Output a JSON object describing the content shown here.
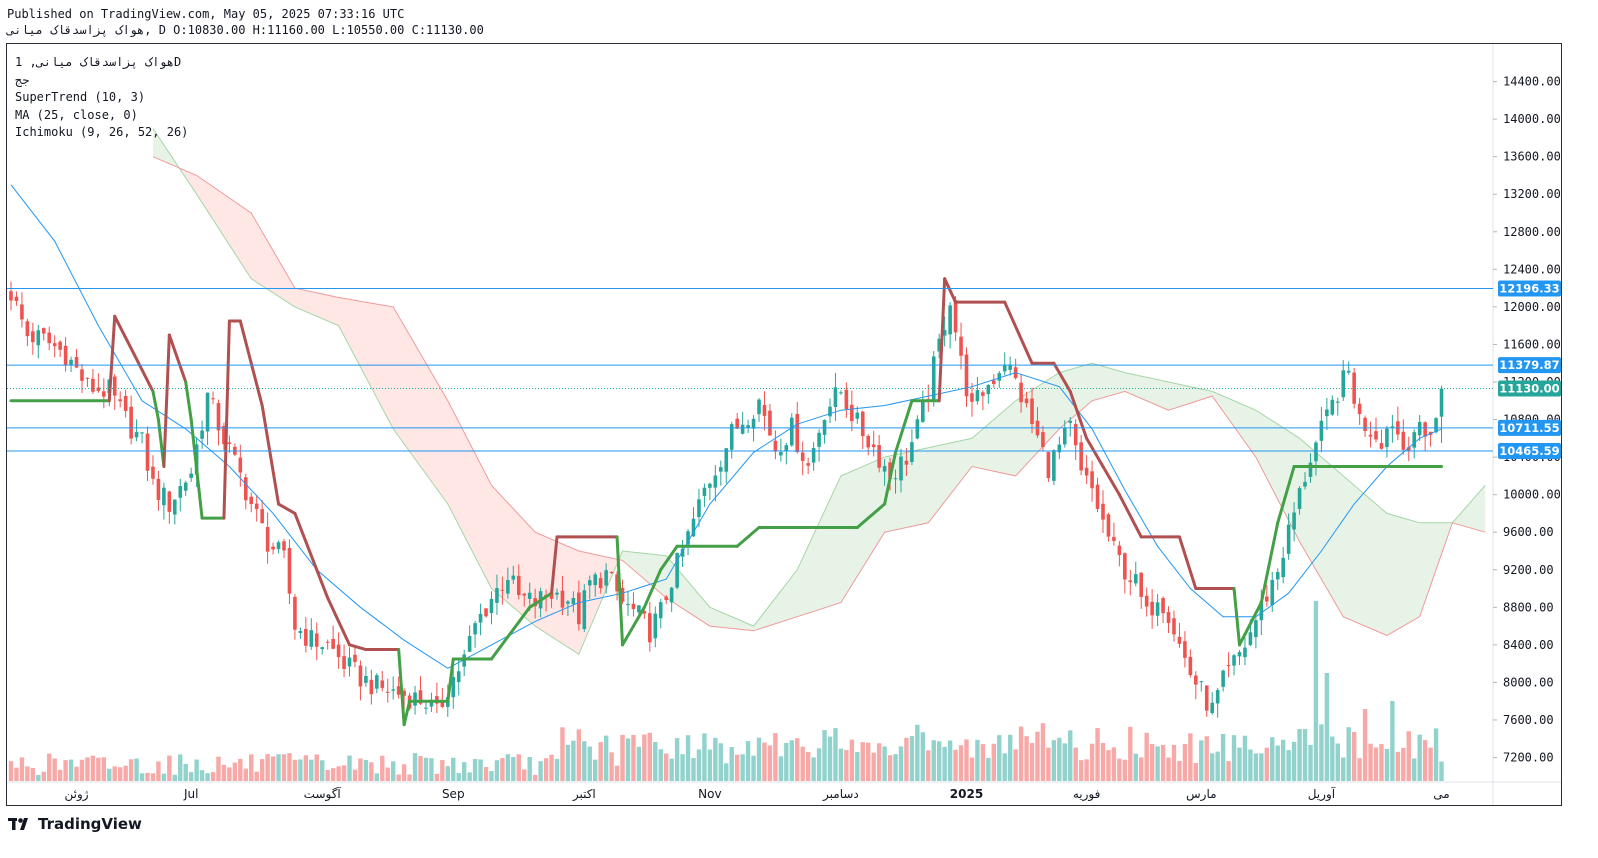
{
  "header": {
    "published": "Published on TradingView.com, May 05, 2025 07:33:16 UTC",
    "ohlc": "هواک پزاسدقاک میانی, D O:10830.00 H:11160.00 L:10550.00 C:11130.00"
  },
  "legend": {
    "title": "هواک پزاسدقاک میانی, 1D",
    "subtitle": "جج",
    "indicators": [
      "SuperTrend (10, 3)",
      "MA (25, close, 0)",
      "Ichimoku (9, 26, 52, 26)"
    ]
  },
  "brand": {
    "name": "TradingView"
  },
  "colors": {
    "up": "#26a69a",
    "down": "#ef5350",
    "line": "#2196f3",
    "supertrend_up": "#43a047",
    "supertrend_down": "#b05050",
    "cloud_bull": "#a5d6a7",
    "cloud_bear": "#ef9a9a"
  },
  "chart_data": {
    "type": "candlestick",
    "interval": "1D",
    "ylim": [
      6950,
      14800
    ],
    "y_ticks": [
      7200,
      7600,
      8000,
      8400,
      8800,
      9200,
      9600,
      10000,
      10400,
      10800,
      11200,
      11600,
      12000,
      12400,
      12800,
      13200,
      13600,
      14000,
      14400
    ],
    "y_tick_labels": [
      "7200.00",
      "7600.00",
      "8000.00",
      "8400.00",
      "8800.00",
      "9200.00",
      "9600.00",
      "10000.00",
      "10400.00",
      "10800.00",
      "11200.00",
      "11600.00",
      "12000.00",
      "12400.00",
      "12800.00",
      "13200.00",
      "13600.00",
      "14000.00",
      "14400.00"
    ],
    "x_labels": [
      {
        "label": "ژوئن",
        "bar": 12
      },
      {
        "label": "Jul",
        "bar": 33
      },
      {
        "label": "آگوست",
        "bar": 57
      },
      {
        "label": "Sep",
        "bar": 81
      },
      {
        "label": "اکتبر",
        "bar": 105
      },
      {
        "label": "Nov",
        "bar": 128
      },
      {
        "label": "دسامبر",
        "bar": 152
      },
      {
        "label": "2025",
        "bar": 175
      },
      {
        "label": "فوریه",
        "bar": 197
      },
      {
        "label": "مارس",
        "bar": 218
      },
      {
        "label": "آوریل",
        "bar": 240
      },
      {
        "label": "می",
        "bar": 262
      }
    ],
    "horizontal_levels": [
      {
        "value": 12196.33,
        "label": "12196.33"
      },
      {
        "value": 11379.87,
        "label": "11379.87"
      },
      {
        "value": 10711.55,
        "label": "10711.55"
      },
      {
        "value": 10465.59,
        "label": "10465.59"
      }
    ],
    "last_price": {
      "value": 11130.0,
      "label": "11130.00"
    },
    "close_anchors": [
      [
        0,
        12150
      ],
      [
        3,
        11700
      ],
      [
        6,
        11650
      ],
      [
        10,
        11500
      ],
      [
        14,
        11150
      ],
      [
        18,
        11100
      ],
      [
        21,
        10800
      ],
      [
        24,
        10550
      ],
      [
        26,
        10100
      ],
      [
        29,
        9900
      ],
      [
        33,
        10250
      ],
      [
        36,
        11050
      ],
      [
        39,
        10600
      ],
      [
        42,
        10200
      ],
      [
        44,
        9900
      ],
      [
        47,
        9500
      ],
      [
        50,
        9300
      ],
      [
        52,
        8600
      ],
      [
        55,
        8450
      ],
      [
        58,
        8400
      ],
      [
        61,
        8200
      ],
      [
        64,
        8050
      ],
      [
        67,
        7950
      ],
      [
        70,
        7900
      ],
      [
        73,
        7850
      ],
      [
        76,
        7800
      ],
      [
        78,
        7650
      ],
      [
        80,
        7950
      ],
      [
        83,
        8250
      ],
      [
        85,
        8600
      ],
      [
        88,
        8900
      ],
      [
        91,
        9150
      ],
      [
        93,
        8900
      ],
      [
        96,
        8850
      ],
      [
        99,
        8950
      ],
      [
        102,
        8900
      ],
      [
        104,
        8700
      ],
      [
        106,
        9050
      ],
      [
        109,
        9150
      ],
      [
        112,
        8850
      ],
      [
        115,
        8700
      ],
      [
        117,
        8550
      ],
      [
        119,
        8750
      ],
      [
        121,
        9100
      ],
      [
        124,
        9550
      ],
      [
        127,
        10050
      ],
      [
        130,
        10400
      ],
      [
        132,
        10650
      ],
      [
        134,
        10800
      ],
      [
        137,
        11000
      ],
      [
        140,
        10500
      ],
      [
        143,
        10700
      ],
      [
        146,
        10300
      ],
      [
        149,
        10900
      ],
      [
        152,
        11100
      ],
      [
        155,
        10750
      ],
      [
        158,
        10500
      ],
      [
        161,
        10200
      ],
      [
        164,
        10400
      ],
      [
        166,
        10700
      ],
      [
        168,
        11100
      ],
      [
        170,
        11600
      ],
      [
        172,
        12100
      ],
      [
        174,
        11400
      ],
      [
        176,
        10900
      ],
      [
        178,
        11100
      ],
      [
        180,
        11250
      ],
      [
        182,
        11450
      ],
      [
        184,
        11200
      ],
      [
        186,
        10900
      ],
      [
        188,
        10600
      ],
      [
        190,
        10300
      ],
      [
        192,
        10500
      ],
      [
        194,
        10700
      ],
      [
        196,
        10200
      ],
      [
        198,
        10050
      ],
      [
        200,
        9700
      ],
      [
        202,
        9400
      ],
      [
        204,
        9200
      ],
      [
        206,
        9050
      ],
      [
        208,
        8700
      ],
      [
        210,
        8950
      ],
      [
        212,
        8750
      ],
      [
        214,
        8400
      ],
      [
        216,
        8100
      ],
      [
        218,
        7900
      ],
      [
        220,
        7700
      ],
      [
        222,
        8000
      ],
      [
        226,
        8400
      ],
      [
        229,
        8800
      ],
      [
        232,
        9200
      ],
      [
        235,
        9800
      ],
      [
        238,
        10400
      ],
      [
        241,
        10800
      ],
      [
        243,
        11100
      ],
      [
        245,
        11300
      ],
      [
        247,
        10800
      ],
      [
        249,
        10700
      ],
      [
        251,
        10600
      ],
      [
        253,
        10800
      ],
      [
        255,
        10500
      ],
      [
        257,
        10700
      ],
      [
        259,
        10600
      ],
      [
        261,
        10830
      ],
      [
        262,
        11130
      ]
    ],
    "supertrend": [
      [
        0,
        11000,
        "up"
      ],
      [
        18,
        11000,
        "up"
      ],
      [
        19,
        11900,
        "down"
      ],
      [
        26,
        11100,
        "down"
      ],
      [
        27,
        10800,
        "up"
      ],
      [
        28,
        10300,
        "up"
      ],
      [
        29,
        11700,
        "down"
      ],
      [
        32,
        11200,
        "down"
      ],
      [
        33,
        10800,
        "up"
      ],
      [
        35,
        9750,
        "up"
      ],
      [
        39,
        9750,
        "up"
      ],
      [
        40,
        11850,
        "down"
      ],
      [
        42,
        11850,
        "down"
      ],
      [
        46,
        10950,
        "down"
      ],
      [
        49,
        9900,
        "down"
      ],
      [
        52,
        9800,
        "down"
      ],
      [
        58,
        8900,
        "down"
      ],
      [
        62,
        8400,
        "down"
      ],
      [
        65,
        8350,
        "down"
      ],
      [
        71,
        8350,
        "down"
      ],
      [
        72,
        7550,
        "up"
      ],
      [
        73,
        7800,
        "up"
      ],
      [
        80,
        7800,
        "up"
      ],
      [
        81,
        8250,
        "up"
      ],
      [
        88,
        8250,
        "up"
      ],
      [
        95,
        8800,
        "up"
      ],
      [
        99,
        8950,
        "up"
      ],
      [
        100,
        9550,
        "down"
      ],
      [
        111,
        9550,
        "down"
      ],
      [
        112,
        8400,
        "up"
      ],
      [
        116,
        8800,
        "up"
      ],
      [
        119,
        9200,
        "up"
      ],
      [
        122,
        9450,
        "up"
      ],
      [
        133,
        9450,
        "up"
      ],
      [
        137,
        9650,
        "up"
      ],
      [
        155,
        9650,
        "up"
      ],
      [
        160,
        9900,
        "up"
      ],
      [
        162,
        10450,
        "up"
      ],
      [
        165,
        11000,
        "up"
      ],
      [
        170,
        11000,
        "up"
      ],
      [
        171,
        12300,
        "down"
      ],
      [
        173,
        12050,
        "down"
      ],
      [
        182,
        12050,
        "down"
      ],
      [
        187,
        11400,
        "down"
      ],
      [
        191,
        11400,
        "down"
      ],
      [
        194,
        11100,
        "down"
      ],
      [
        197,
        10600,
        "down"
      ],
      [
        200,
        10300,
        "down"
      ],
      [
        203,
        10000,
        "down"
      ],
      [
        207,
        9550,
        "down"
      ],
      [
        214,
        9550,
        "down"
      ],
      [
        217,
        9000,
        "down"
      ],
      [
        224,
        9000,
        "down"
      ],
      [
        225,
        8400,
        "up"
      ],
      [
        229,
        8850,
        "up"
      ],
      [
        232,
        9700,
        "up"
      ],
      [
        235,
        10300,
        "up"
      ],
      [
        262,
        10300,
        "up"
      ]
    ],
    "ma25": [
      [
        0,
        13300
      ],
      [
        8,
        12700
      ],
      [
        16,
        11800
      ],
      [
        24,
        11000
      ],
      [
        32,
        10700
      ],
      [
        40,
        10300
      ],
      [
        48,
        9800
      ],
      [
        56,
        9200
      ],
      [
        64,
        8800
      ],
      [
        72,
        8450
      ],
      [
        80,
        8150
      ],
      [
        88,
        8400
      ],
      [
        96,
        8650
      ],
      [
        104,
        8850
      ],
      [
        112,
        8950
      ],
      [
        120,
        9100
      ],
      [
        128,
        9900
      ],
      [
        136,
        10450
      ],
      [
        144,
        10750
      ],
      [
        152,
        10900
      ],
      [
        160,
        10950
      ],
      [
        168,
        11050
      ],
      [
        176,
        11150
      ],
      [
        184,
        11300
      ],
      [
        192,
        11150
      ],
      [
        198,
        10700
      ],
      [
        204,
        10050
      ],
      [
        210,
        9450
      ],
      [
        216,
        9000
      ],
      [
        222,
        8700
      ],
      [
        228,
        8700
      ],
      [
        234,
        8950
      ],
      [
        240,
        9400
      ],
      [
        246,
        9900
      ],
      [
        252,
        10300
      ],
      [
        258,
        10600
      ],
      [
        262,
        10700
      ]
    ],
    "cloud_a": [
      [
        26,
        13900
      ],
      [
        34,
        13200
      ],
      [
        44,
        12300
      ],
      [
        52,
        12000
      ],
      [
        60,
        11800
      ],
      [
        70,
        10700
      ],
      [
        80,
        9900
      ],
      [
        88,
        9000
      ],
      [
        96,
        8600
      ],
      [
        104,
        8300
      ],
      [
        112,
        9400
      ],
      [
        120,
        9350
      ],
      [
        128,
        8800
      ],
      [
        136,
        8600
      ],
      [
        144,
        9200
      ],
      [
        152,
        10200
      ],
      [
        160,
        10400
      ],
      [
        168,
        10500
      ],
      [
        176,
        10600
      ],
      [
        184,
        11000
      ],
      [
        192,
        11300
      ],
      [
        198,
        11400
      ],
      [
        204,
        11300
      ],
      [
        212,
        11200
      ],
      [
        220,
        11100
      ],
      [
        228,
        10900
      ],
      [
        236,
        10600
      ],
      [
        244,
        10200
      ],
      [
        252,
        9800
      ],
      [
        258,
        9700
      ],
      [
        264,
        9700
      ],
      [
        270,
        10100
      ]
    ],
    "cloud_b": [
      [
        26,
        13600
      ],
      [
        34,
        13400
      ],
      [
        44,
        13000
      ],
      [
        52,
        12200
      ],
      [
        60,
        12100
      ],
      [
        70,
        12000
      ],
      [
        80,
        11000
      ],
      [
        88,
        10100
      ],
      [
        96,
        9600
      ],
      [
        104,
        9400
      ],
      [
        112,
        9300
      ],
      [
        120,
        8900
      ],
      [
        128,
        8600
      ],
      [
        136,
        8550
      ],
      [
        144,
        8700
      ],
      [
        152,
        8850
      ],
      [
        160,
        9600
      ],
      [
        168,
        9700
      ],
      [
        176,
        10300
      ],
      [
        184,
        10200
      ],
      [
        192,
        10700
      ],
      [
        198,
        11000
      ],
      [
        204,
        11100
      ],
      [
        212,
        10900
      ],
      [
        220,
        11050
      ],
      [
        228,
        10400
      ],
      [
        236,
        9500
      ],
      [
        244,
        8700
      ],
      [
        252,
        8500
      ],
      [
        258,
        8700
      ],
      [
        264,
        9700
      ],
      [
        270,
        9600
      ]
    ]
  }
}
